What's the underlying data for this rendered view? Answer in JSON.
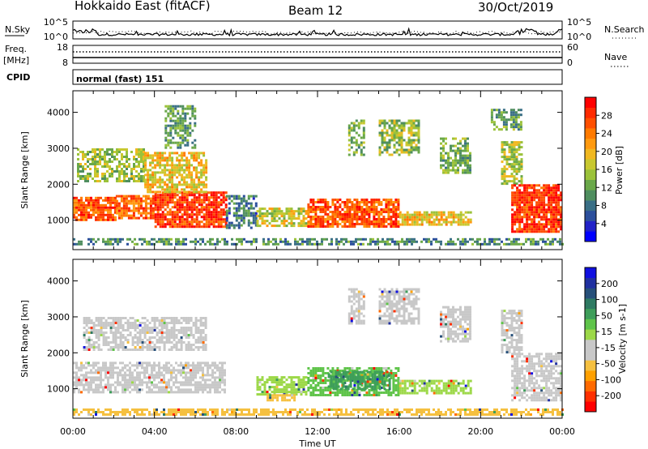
{
  "header": {
    "radar": "Hokkaido East (fitACF)",
    "beam": "Beam 12",
    "date": "30/Oct/2019"
  },
  "noise_panel": {
    "left_label": "N.Sky",
    "left_ticks": [
      "10^5",
      "10^0"
    ],
    "right_label": "N.Search",
    "right_ticks": [
      "10^5",
      "10^0"
    ]
  },
  "freq_panel": {
    "left_label_1": "Freq.",
    "left_label_2": "[MHz]",
    "left_ticks": [
      "18",
      "8"
    ],
    "right_label": "Nave",
    "right_ticks": [
      "60",
      "0"
    ]
  },
  "cpid": {
    "label": "CPID",
    "value": "normal (fast) 151"
  },
  "chart_data": [
    {
      "type": "heatmap",
      "panel": "power",
      "ylabel": "Slant Range [km]",
      "yticks": [
        "1000",
        "2000",
        "3000",
        "4000"
      ],
      "ylim": [
        180,
        4600
      ],
      "xlim_hours": [
        0,
        24
      ],
      "colorbar": {
        "label": "Power [dB]",
        "ticks": [
          "28",
          "24",
          "20",
          "16",
          "12",
          "8",
          "4"
        ],
        "colors": [
          "#0000ff",
          "#2222c8",
          "#2c4f9c",
          "#3a6f86",
          "#4f8e5f",
          "#6aa84a",
          "#9bc23a",
          "#c8c830",
          "#f0b820",
          "#ff9a10",
          "#ff7a00",
          "#ff4f00",
          "#ff2a00",
          "#ff0000"
        ]
      },
      "regions": [
        {
          "t": [
            0.0,
            2.1
          ],
          "r": [
            1000,
            1650
          ],
          "level": 0.85
        },
        {
          "t": [
            2.1,
            4.0
          ],
          "r": [
            1050,
            1700
          ],
          "level": 0.82
        },
        {
          "t": [
            4.0,
            7.5
          ],
          "r": [
            850,
            1800
          ],
          "level": 0.9
        },
        {
          "t": [
            0.2,
            3.5
          ],
          "r": [
            2100,
            3000
          ],
          "level": 0.45
        },
        {
          "t": [
            3.5,
            6.5
          ],
          "r": [
            1800,
            2900
          ],
          "level": 0.6
        },
        {
          "t": [
            4.5,
            6.0
          ],
          "r": [
            3000,
            4200
          ],
          "level": 0.35
        },
        {
          "t": [
            7.5,
            9.0
          ],
          "r": [
            800,
            1700
          ],
          "level": 0.25
        },
        {
          "t": [
            9.0,
            11.5
          ],
          "r": [
            850,
            1350
          ],
          "level": 0.55
        },
        {
          "t": [
            11.5,
            16.0
          ],
          "r": [
            800,
            1600
          ],
          "level": 0.85
        },
        {
          "t": [
            16.0,
            19.5
          ],
          "r": [
            850,
            1250
          ],
          "level": 0.6
        },
        {
          "t": [
            13.5,
            14.3
          ],
          "r": [
            2800,
            3800
          ],
          "level": 0.4
        },
        {
          "t": [
            15.0,
            17.0
          ],
          "r": [
            2800,
            3800
          ],
          "level": 0.45
        },
        {
          "t": [
            18.0,
            19.5
          ],
          "r": [
            2300,
            3300
          ],
          "level": 0.4
        },
        {
          "t": [
            21.0,
            22.0
          ],
          "r": [
            2000,
            3200
          ],
          "level": 0.5
        },
        {
          "t": [
            21.5,
            24.0
          ],
          "r": [
            700,
            2000
          ],
          "level": 0.9
        },
        {
          "t": [
            20.5,
            22.0
          ],
          "r": [
            3500,
            4100
          ],
          "level": 0.35
        },
        {
          "t": [
            0.0,
            24.0
          ],
          "r": [
            300,
            500
          ],
          "level": 0.3
        }
      ]
    },
    {
      "type": "heatmap",
      "panel": "velocity",
      "ylabel": "Slant Range [km]",
      "yticks": [
        "1000",
        "2000",
        "3000",
        "4000"
      ],
      "ylim": [
        180,
        4600
      ],
      "xlim_hours": [
        0,
        24
      ],
      "xticks": [
        "00:00",
        "04:00",
        "08:00",
        "12:00",
        "16:00",
        "20:00",
        "00:00"
      ],
      "xlabel": "Time UT",
      "colorbar": {
        "label": "Velocity [m s-1]",
        "ticks": [
          "200",
          "100",
          "50",
          "15",
          "-15",
          "-50",
          "-100",
          "-200"
        ],
        "colors": [
          "#ff0000",
          "#ff3000",
          "#ff6a00",
          "#ffa000",
          "#f5c040",
          "#c8c8c8",
          "#c8c8c8",
          "#9cd848",
          "#5fc44a",
          "#3e9e5a",
          "#2e7a62",
          "#27507a",
          "#2030a0",
          "#1010e0"
        ]
      },
      "regions": [
        {
          "t": [
            0.0,
            7.5
          ],
          "r": [
            900,
            1750
          ],
          "color": "#c8c8c8"
        },
        {
          "t": [
            0.5,
            6.5
          ],
          "r": [
            2100,
            3000
          ],
          "color": "#c8c8c8"
        },
        {
          "t": [
            9.0,
            11.5
          ],
          "r": [
            850,
            1350
          ],
          "color": "#9cd848"
        },
        {
          "t": [
            11.5,
            16.0
          ],
          "r": [
            800,
            1600
          ],
          "color": "#5fc44a"
        },
        {
          "t": [
            12.5,
            15.5
          ],
          "r": [
            1000,
            1500
          ],
          "color": "#3e9e5a"
        },
        {
          "t": [
            16.0,
            19.5
          ],
          "r": [
            850,
            1250
          ],
          "color": "#9cd848"
        },
        {
          "t": [
            13.5,
            14.3
          ],
          "r": [
            2800,
            3800
          ],
          "color": "#c8c8c8"
        },
        {
          "t": [
            15.0,
            17.0
          ],
          "r": [
            2800,
            3800
          ],
          "color": "#c8c8c8"
        },
        {
          "t": [
            18.0,
            19.5
          ],
          "r": [
            2300,
            3300
          ],
          "color": "#c8c8c8"
        },
        {
          "t": [
            21.0,
            22.0
          ],
          "r": [
            2000,
            3200
          ],
          "color": "#c8c8c8"
        },
        {
          "t": [
            21.5,
            24.0
          ],
          "r": [
            700,
            2000
          ],
          "color": "#c8c8c8"
        },
        {
          "t": [
            9.5,
            11.0
          ],
          "r": [
            650,
            850
          ],
          "color": "#f5c040"
        },
        {
          "t": [
            0.0,
            24.0
          ],
          "r": [
            300,
            450
          ],
          "color": "#f5c040"
        }
      ]
    }
  ]
}
